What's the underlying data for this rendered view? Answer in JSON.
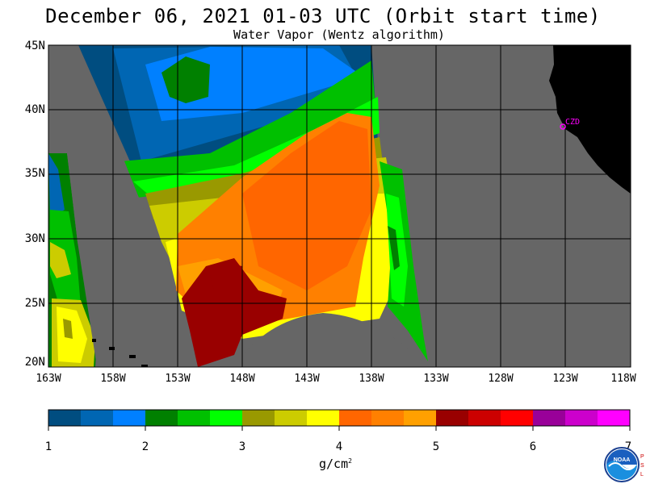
{
  "header": {
    "title": "December 06, 2021  01-03 UTC  (Orbit start time)",
    "subtitle": "Water Vapor (Wentz algorithm)"
  },
  "map": {
    "lat_ticks": [
      "45N",
      "40N",
      "35N",
      "30N",
      "25N",
      "20N"
    ],
    "lon_ticks": [
      "163W",
      "158W",
      "153W",
      "148W",
      "143W",
      "138W",
      "133W",
      "128W",
      "123W",
      "118W"
    ],
    "station_label": "CZD",
    "colors": {
      "no_data": "#666666",
      "land": "#000000",
      "grid": "#000000",
      "station": "#ff00ff"
    }
  },
  "colorbar": {
    "tick_labels": [
      "1",
      "2",
      "3",
      "4",
      "5",
      "6",
      "7"
    ],
    "units_base": "g/cm",
    "units_exp": "2",
    "colors": [
      "#004d80",
      "#0066b3",
      "#0080ff",
      "#008000",
      "#00c000",
      "#00ff00",
      "#999900",
      "#cccc00",
      "#ffff00",
      "#ff6600",
      "#ff8000",
      "#ffa000",
      "#990000",
      "#cc0000",
      "#ff0000",
      "#990099",
      "#cc00cc",
      "#ff00ff"
    ]
  },
  "logo": {
    "name": "NOAA"
  }
}
